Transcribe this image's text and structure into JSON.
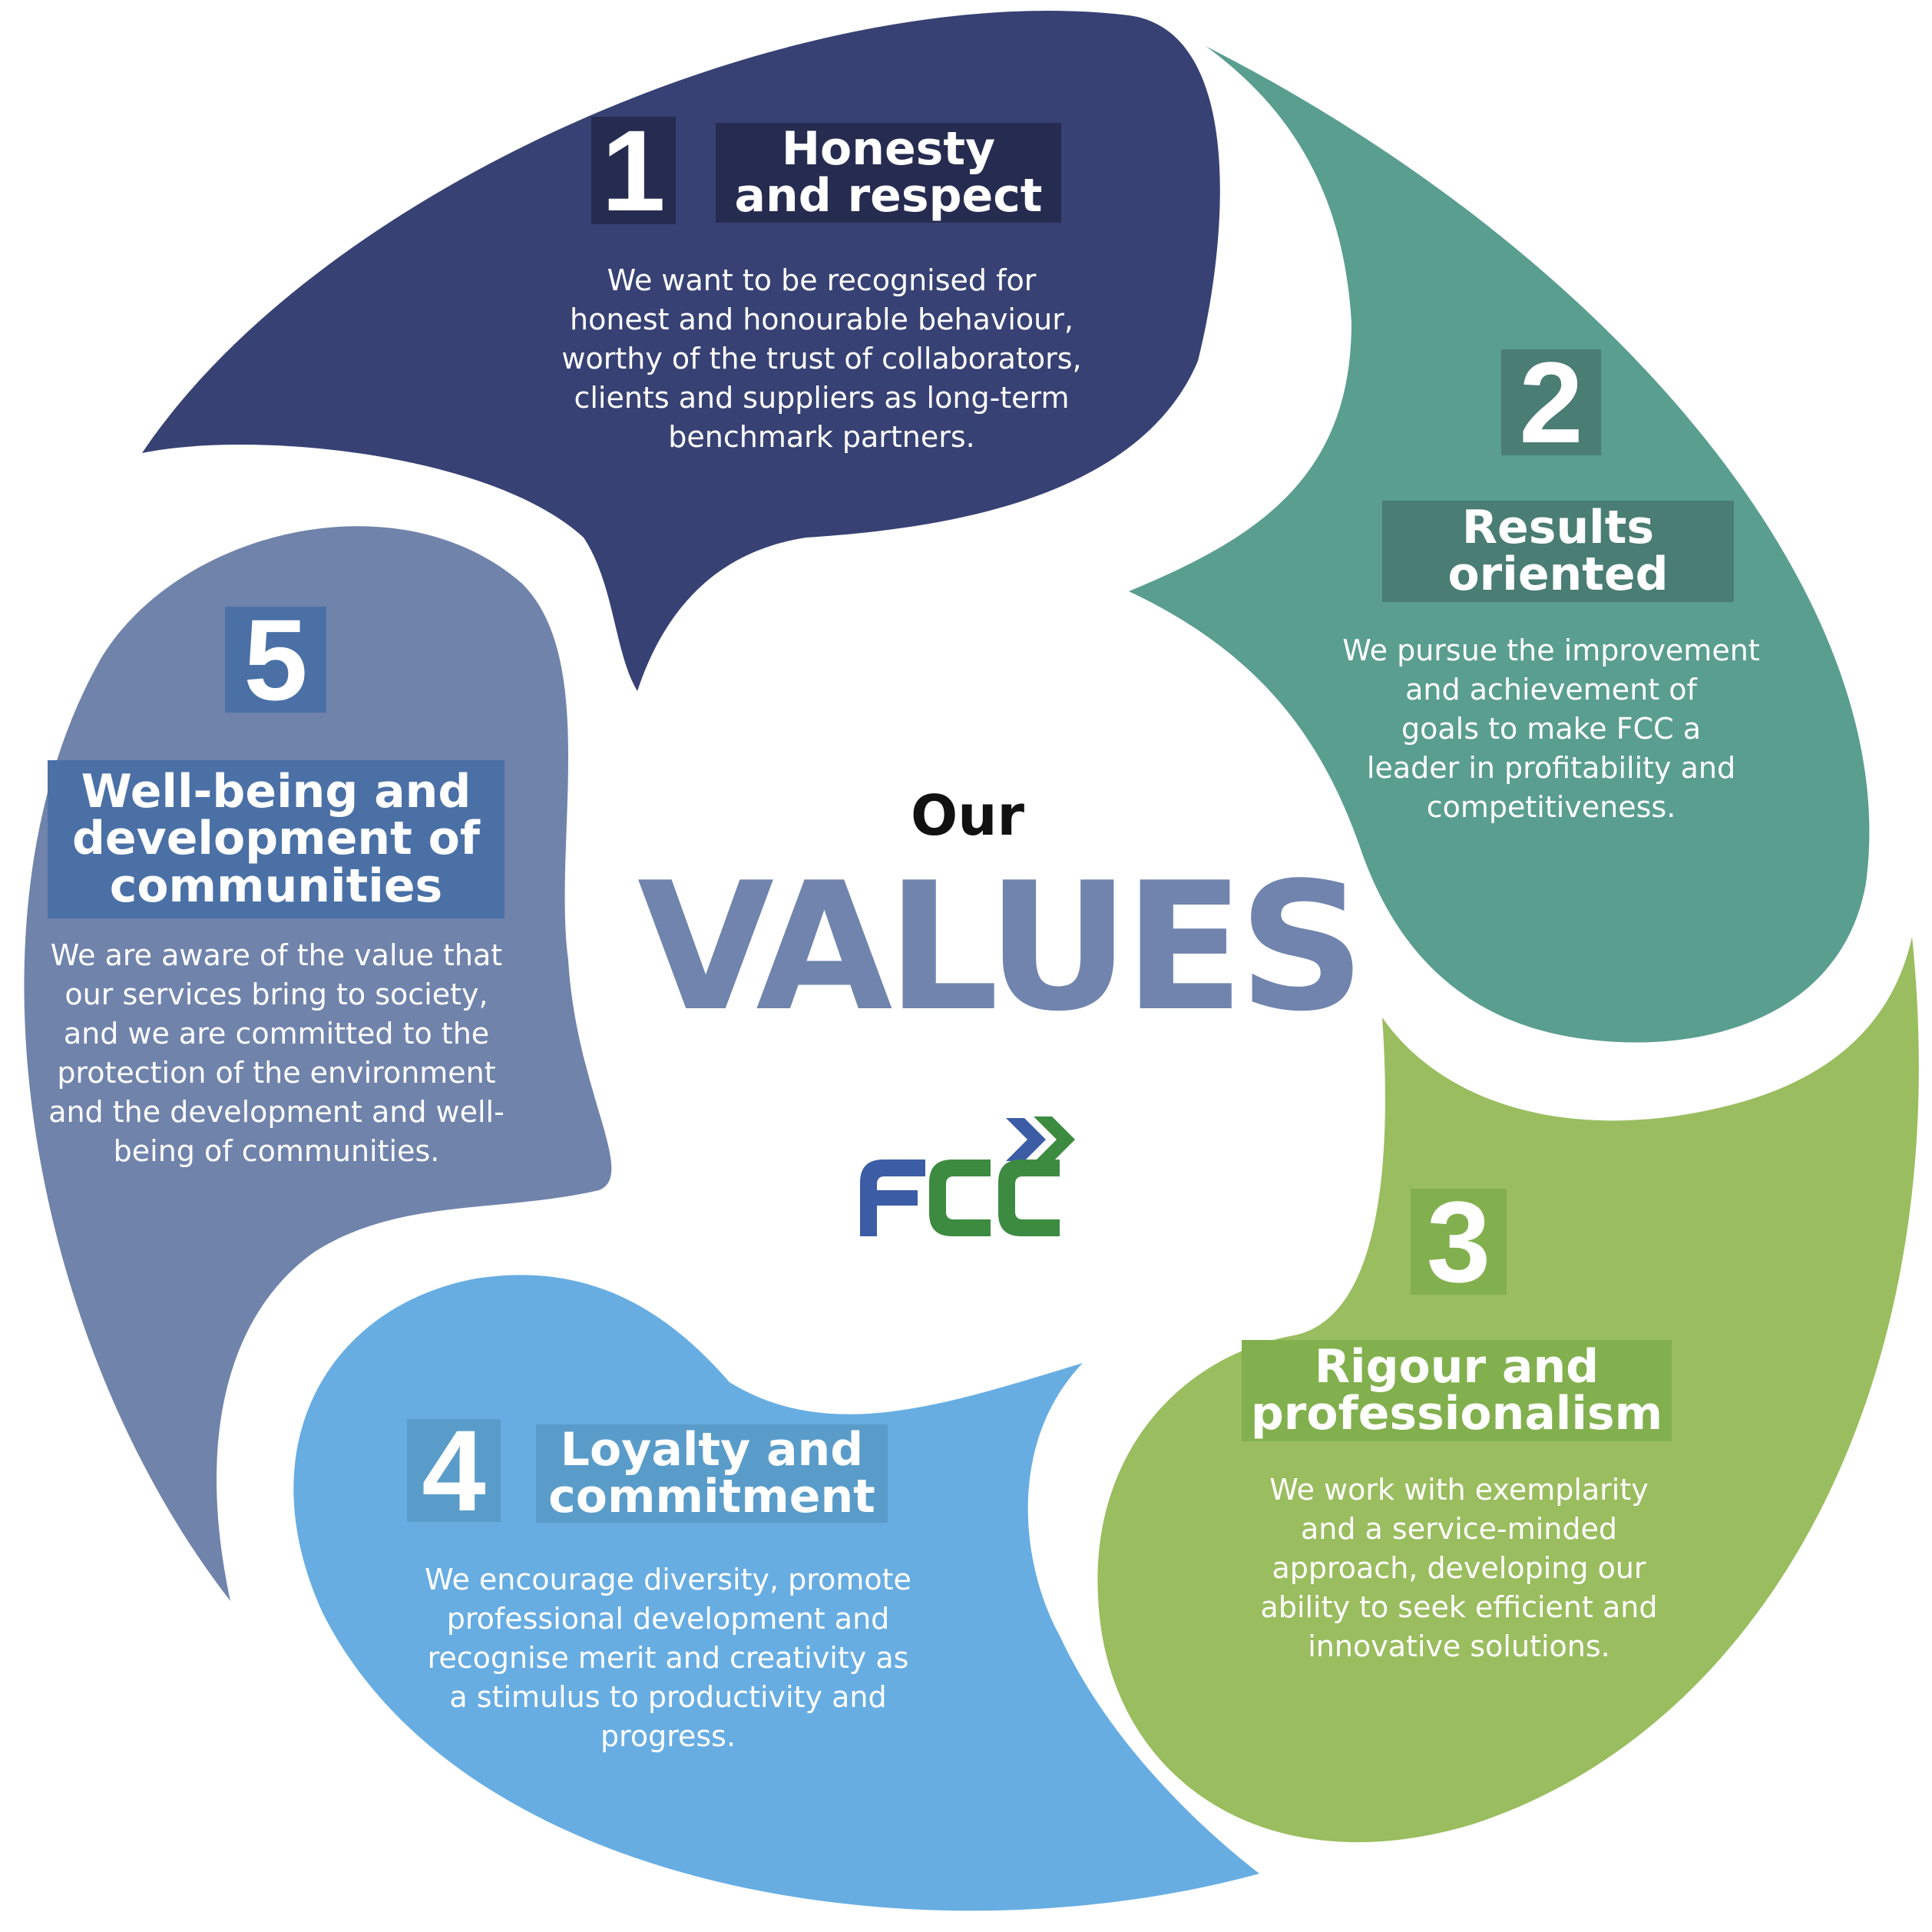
{
  "center": {
    "our": "Our",
    "values": "VALUES",
    "values_color": "#7084ad"
  },
  "logo": {
    "text": "FCC",
    "blue": "#3c5da6",
    "green": "#3d8b41"
  },
  "values": [
    {
      "number": "1",
      "title_line1": "Honesty",
      "title_line2": "and respect",
      "description": "We want to be recognised for\nhonest and honourable behaviour,\nworthy of the trust of collaborators,\nclients and suppliers as long-term\nbenchmark partners.",
      "color": "#374173",
      "badge_color": "#262b50"
    },
    {
      "number": "2",
      "title_line1": "Results",
      "title_line2": "oriented",
      "description": "We pursue the improvement\nand achievement of\ngoals to make FCC a\nleader in profitability and\ncompetitiveness.",
      "color": "#5a9e8f",
      "badge_color": "#4a7d74"
    },
    {
      "number": "3",
      "title_line1": "Rigour and",
      "title_line2": "professionalism",
      "description": "We work with exemplarity\nand a service-minded\napproach, developing our\nability to seek efficient and\ninnovative solutions.",
      "color": "#9abd5f",
      "badge_color": "#82b04e"
    },
    {
      "number": "4",
      "title_line1": "Loyalty and",
      "title_line2": "commitment",
      "description": "We encourage diversity, promote\nprofessional development and\nrecognise merit and creativity as\na stimulus to productivity and\nprogress.",
      "color": "#67ade2",
      "badge_color": "#5a9cc9"
    },
    {
      "number": "5",
      "title_line1": "Well-being and",
      "title_line2": "development of",
      "title_line3": "communities",
      "description": "We are aware of the value that\nour services bring to society,\nand we are committed to the\nprotection of the environment\nand the development and well-\nbeing of communities.",
      "color": "#7083ab",
      "badge_color": "#4a70a6"
    }
  ]
}
